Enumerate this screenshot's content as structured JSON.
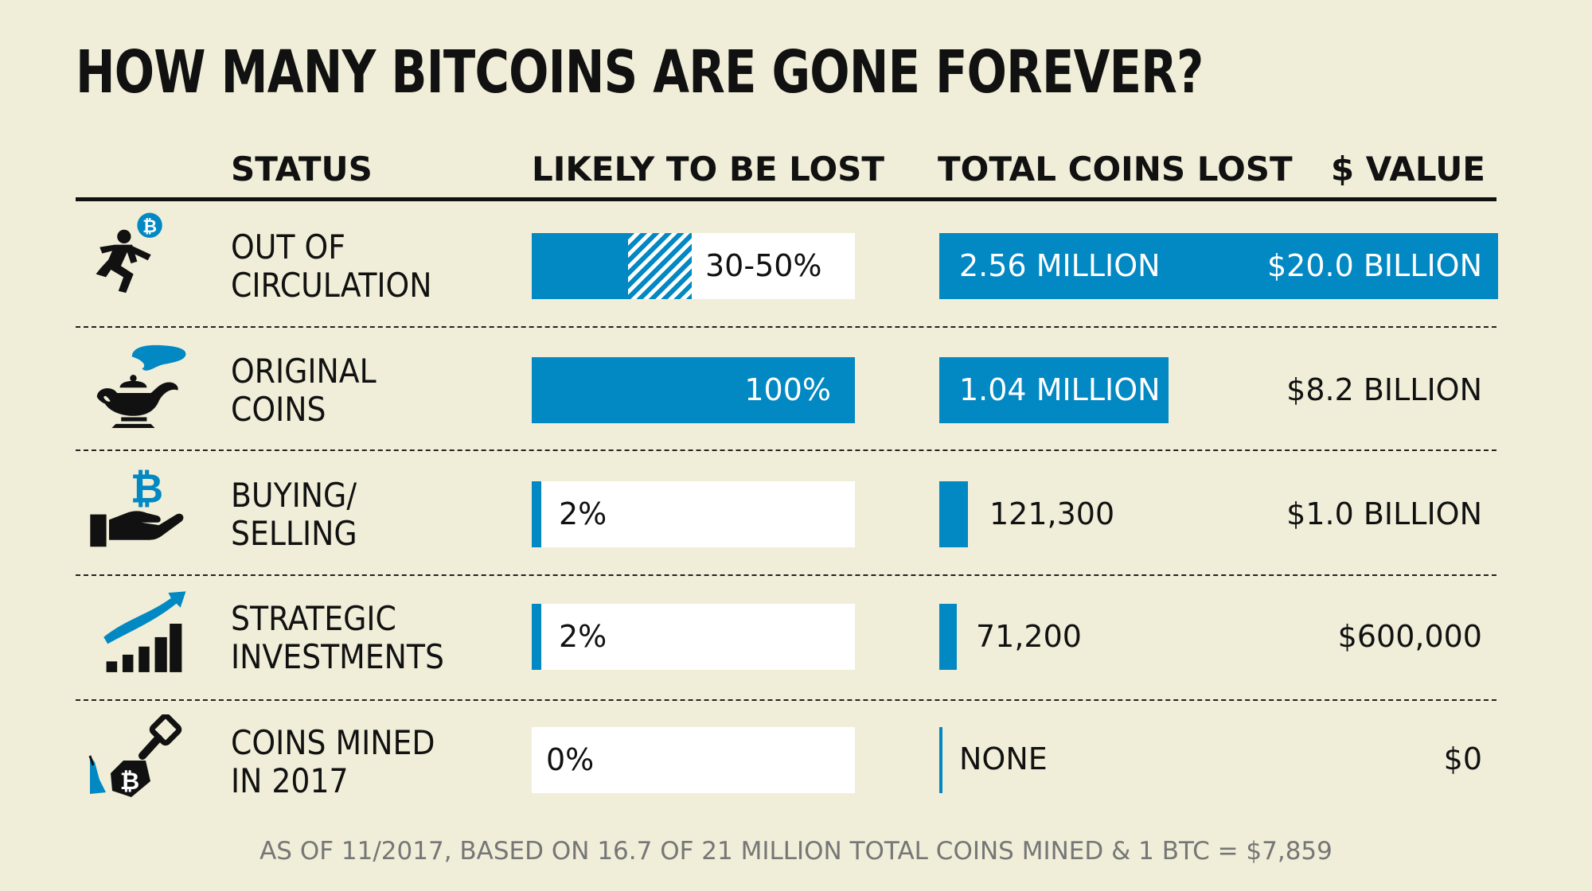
{
  "title": "HOW MANY BITCOINS ARE GONE FOREVER?",
  "headers": {
    "status": "STATUS",
    "likely": "LIKELY TO BE LOST",
    "total": "TOTAL COINS LOST",
    "value": "$ VALUE"
  },
  "colors": {
    "accent": "#0288c2",
    "background": "#f0eed8",
    "ink": "#111111"
  },
  "rows": [
    {
      "icon": "running-man-bitcoin-icon",
      "status_line1": "OUT OF",
      "status_line2": "CIRCULATION",
      "likely_label": "30-50%",
      "total_label": "2.56 MILLION",
      "value_label": "$20.0 BILLION"
    },
    {
      "icon": "genie-lamp-icon",
      "status_line1": "ORIGINAL",
      "status_line2": "COINS",
      "likely_label": "100%",
      "total_label": "1.04 MILLION",
      "value_label": "$8.2 BILLION"
    },
    {
      "icon": "hand-bitcoin-icon",
      "status_line1": "BUYING/",
      "status_line2": "SELLING",
      "likely_label": "2%",
      "total_label": "121,300",
      "value_label": "$1.0 BILLION"
    },
    {
      "icon": "growth-chart-icon",
      "status_line1": "STRATEGIC",
      "status_line2": "INVESTMENTS",
      "likely_label": "2%",
      "total_label": "71,200",
      "value_label": "$600,000"
    },
    {
      "icon": "shovel-bitcoin-icon",
      "status_line1": "COINS MINED",
      "status_line2": "IN 2017",
      "likely_label": "0%",
      "total_label": "NONE",
      "value_label": "$0"
    }
  ],
  "chart_data": {
    "type": "bar",
    "title": "HOW MANY BITCOINS ARE GONE FOREVER?",
    "categories": [
      "OUT OF CIRCULATION",
      "ORIGINAL COINS",
      "BUYING/SELLING",
      "STRATEGIC INVESTMENTS",
      "COINS MINED IN 2017"
    ],
    "series": [
      {
        "name": "LIKELY TO BE LOST",
        "values": [
          [
            30,
            50
          ],
          100,
          2,
          2,
          0
        ]
      },
      {
        "name": "TOTAL COINS LOST",
        "values": [
          2560000,
          1040000,
          121300,
          71200,
          0
        ]
      },
      {
        "name": "$ VALUE",
        "values": [
          20000000000,
          8200000000,
          1000000000,
          600000,
          0
        ]
      }
    ]
  },
  "footnote": "AS OF 11/2017, BASED ON 16.7 OF 21 MILLION TOTAL COINS MINED & 1 BTC = $7,859"
}
